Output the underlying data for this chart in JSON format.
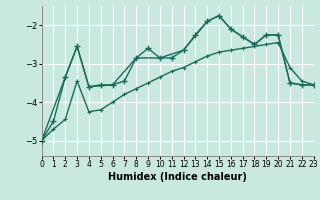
{
  "xlabel": "Humidex (Indice chaleur)",
  "xlim": [
    0,
    23
  ],
  "ylim": [
    -5.4,
    -1.5
  ],
  "yticks": [
    -5,
    -4,
    -3,
    -2
  ],
  "xticks": [
    0,
    1,
    2,
    3,
    4,
    5,
    6,
    7,
    8,
    9,
    10,
    11,
    12,
    13,
    14,
    15,
    16,
    17,
    18,
    19,
    20,
    21,
    22,
    23
  ],
  "bg_color": "#c8e8e0",
  "grid_color": "#ffffff",
  "line_color": "#1a6b5a",
  "line1_x": [
    0,
    1,
    2,
    3,
    4,
    5,
    6,
    7,
    8,
    9,
    10,
    11,
    12,
    13,
    14,
    15,
    16,
    17,
    18,
    19,
    20,
    21,
    22,
    23
  ],
  "line1_y": [
    -5.0,
    -4.5,
    -3.35,
    -2.55,
    -3.6,
    -3.55,
    -3.55,
    -3.45,
    -2.85,
    -2.6,
    -2.85,
    -2.85,
    -2.65,
    -2.25,
    -1.9,
    -1.75,
    -2.1,
    -2.3,
    -2.5,
    -2.25,
    -2.25,
    -3.5,
    -3.55,
    -3.55
  ],
  "line2_x": [
    0,
    1,
    2,
    3,
    4,
    5,
    6,
    7,
    8,
    9,
    10,
    11,
    12,
    13,
    14,
    15,
    16,
    17,
    18,
    19,
    20,
    21,
    22,
    23
  ],
  "line2_y": [
    -5.0,
    -4.7,
    -4.45,
    -3.45,
    -4.25,
    -4.2,
    -4.0,
    -3.8,
    -3.65,
    -3.5,
    -3.35,
    -3.2,
    -3.1,
    -2.95,
    -2.8,
    -2.7,
    -2.65,
    -2.6,
    -2.55,
    -2.5,
    -2.45,
    -3.1,
    -3.45,
    -3.55
  ],
  "line3_x": [
    0,
    2,
    3,
    4,
    6,
    8,
    10,
    12,
    14,
    15,
    16,
    17,
    18,
    19,
    20,
    21,
    22,
    23
  ],
  "line3_y": [
    -5.0,
    -3.35,
    -2.55,
    -3.6,
    -3.55,
    -2.85,
    -2.85,
    -2.65,
    -1.9,
    -1.75,
    -2.1,
    -2.3,
    -2.5,
    -2.25,
    -2.25,
    -3.5,
    -3.55,
    -3.55
  ]
}
